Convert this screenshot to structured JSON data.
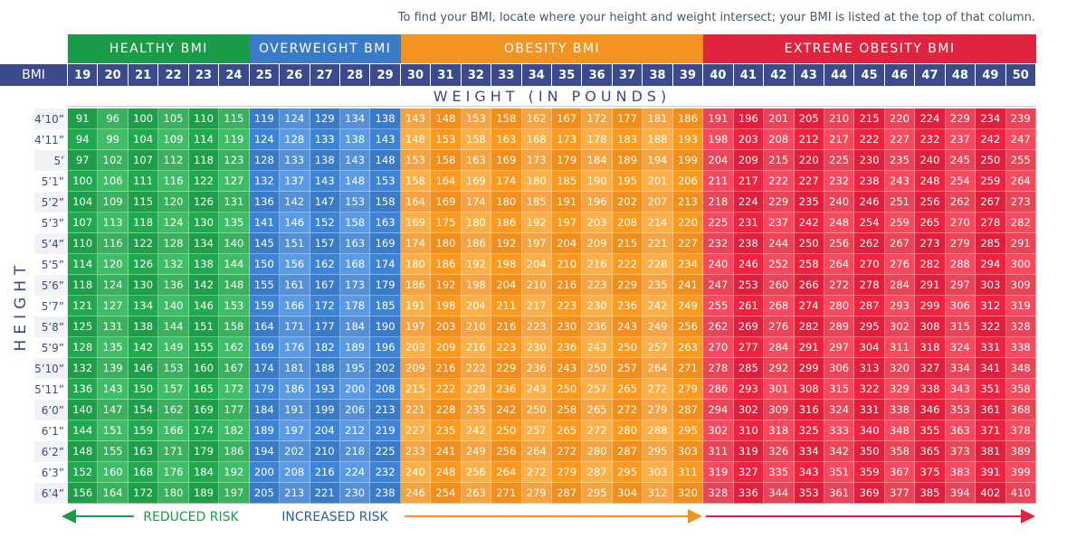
{
  "note": "To find your BMI, locate where your height and weight intersect; your BMI is listed at the top of that column.",
  "groups": [
    "HEALTHY BMI",
    "OVERWEIGHT BMI",
    "OBESITY BMI",
    "EXTREME OBESITY BMI"
  ],
  "bmi_label": "BMI",
  "bmi": [
    19,
    20,
    21,
    22,
    23,
    24,
    25,
    26,
    27,
    28,
    29,
    30,
    31,
    32,
    33,
    34,
    35,
    36,
    37,
    38,
    39,
    40,
    41,
    42,
    43,
    44,
    45,
    46,
    47,
    48,
    49,
    50
  ],
  "weight_header": "WEIGHT (IN POUNDS)",
  "height_label": "HEIGHT",
  "rows": [
    {
      "height": "4’10”",
      "weights": [
        91,
        96,
        100,
        105,
        110,
        115,
        119,
        124,
        129,
        134,
        138,
        143,
        148,
        153,
        158,
        162,
        167,
        172,
        177,
        181,
        186,
        191,
        196,
        201,
        205,
        210,
        215,
        220,
        224,
        229,
        234,
        239
      ]
    },
    {
      "height": "4’11”",
      "weights": [
        94,
        99,
        104,
        109,
        114,
        119,
        124,
        128,
        133,
        138,
        143,
        148,
        153,
        158,
        163,
        168,
        173,
        178,
        183,
        188,
        193,
        198,
        203,
        208,
        212,
        217,
        222,
        227,
        232,
        237,
        242,
        247
      ]
    },
    {
      "height": "5’",
      "weights": [
        97,
        102,
        107,
        112,
        118,
        123,
        128,
        133,
        138,
        143,
        148,
        153,
        158,
        163,
        169,
        173,
        179,
        184,
        189,
        194,
        199,
        204,
        209,
        215,
        220,
        225,
        230,
        235,
        240,
        245,
        250,
        255
      ]
    },
    {
      "height": "5’1”",
      "weights": [
        100,
        106,
        111,
        116,
        122,
        127,
        132,
        137,
        143,
        148,
        153,
        158,
        164,
        169,
        174,
        180,
        185,
        190,
        195,
        201,
        206,
        211,
        217,
        222,
        227,
        232,
        238,
        243,
        248,
        254,
        259,
        264
      ]
    },
    {
      "height": "5’2”",
      "weights": [
        104,
        109,
        115,
        120,
        126,
        131,
        136,
        142,
        147,
        153,
        158,
        164,
        169,
        174,
        180,
        185,
        191,
        196,
        202,
        207,
        213,
        218,
        224,
        229,
        235,
        240,
        246,
        251,
        256,
        262,
        267,
        273
      ]
    },
    {
      "height": "5’3”",
      "weights": [
        107,
        113,
        118,
        124,
        130,
        135,
        141,
        146,
        152,
        158,
        163,
        169,
        175,
        180,
        186,
        192,
        197,
        203,
        208,
        214,
        220,
        225,
        231,
        237,
        242,
        248,
        254,
        259,
        265,
        270,
        278,
        282
      ]
    },
    {
      "height": "5’4”",
      "weights": [
        110,
        116,
        122,
        128,
        134,
        140,
        145,
        151,
        157,
        163,
        169,
        174,
        180,
        186,
        192,
        197,
        204,
        209,
        215,
        221,
        227,
        232,
        238,
        244,
        250,
        256,
        262,
        267,
        273,
        279,
        285,
        291
      ]
    },
    {
      "height": "5’5”",
      "weights": [
        114,
        120,
        126,
        132,
        138,
        144,
        150,
        156,
        162,
        168,
        174,
        180,
        186,
        192,
        198,
        204,
        210,
        216,
        222,
        228,
        234,
        240,
        246,
        252,
        258,
        264,
        270,
        276,
        282,
        288,
        294,
        300
      ]
    },
    {
      "height": "5’6”",
      "weights": [
        118,
        124,
        130,
        136,
        142,
        148,
        155,
        161,
        167,
        173,
        179,
        186,
        192,
        198,
        204,
        210,
        216,
        223,
        229,
        235,
        241,
        247,
        253,
        260,
        266,
        272,
        278,
        284,
        291,
        297,
        303,
        309
      ]
    },
    {
      "height": "5’7”",
      "weights": [
        121,
        127,
        134,
        140,
        146,
        153,
        159,
        166,
        172,
        178,
        185,
        191,
        198,
        204,
        211,
        217,
        223,
        230,
        236,
        242,
        249,
        255,
        261,
        268,
        274,
        280,
        287,
        293,
        299,
        306,
        312,
        319
      ]
    },
    {
      "height": "5’8”",
      "weights": [
        125,
        131,
        138,
        144,
        151,
        158,
        164,
        171,
        177,
        184,
        190,
        197,
        203,
        210,
        216,
        223,
        230,
        236,
        243,
        249,
        256,
        262,
        269,
        276,
        282,
        289,
        295,
        302,
        308,
        315,
        322,
        328
      ]
    },
    {
      "height": "5’9”",
      "weights": [
        128,
        135,
        142,
        149,
        155,
        162,
        169,
        176,
        182,
        189,
        196,
        203,
        209,
        216,
        223,
        230,
        236,
        243,
        250,
        257,
        263,
        270,
        277,
        284,
        291,
        297,
        304,
        311,
        318,
        324,
        331,
        338
      ]
    },
    {
      "height": "5’10”",
      "weights": [
        132,
        139,
        146,
        153,
        160,
        167,
        174,
        181,
        188,
        195,
        202,
        209,
        216,
        222,
        229,
        236,
        243,
        250,
        257,
        264,
        271,
        278,
        285,
        292,
        299,
        306,
        313,
        320,
        327,
        334,
        341,
        348
      ]
    },
    {
      "height": "5’11”",
      "weights": [
        136,
        143,
        150,
        157,
        165,
        172,
        179,
        186,
        193,
        200,
        208,
        215,
        222,
        229,
        236,
        243,
        250,
        257,
        265,
        272,
        279,
        286,
        293,
        301,
        308,
        315,
        322,
        329,
        338,
        343,
        351,
        358
      ]
    },
    {
      "height": "6’0”",
      "weights": [
        140,
        147,
        154,
        162,
        169,
        177,
        184,
        191,
        199,
        206,
        213,
        221,
        228,
        235,
        242,
        250,
        258,
        265,
        272,
        279,
        287,
        294,
        302,
        309,
        316,
        324,
        331,
        338,
        346,
        353,
        361,
        368
      ]
    },
    {
      "height": "6’1”",
      "weights": [
        144,
        151,
        159,
        166,
        174,
        182,
        189,
        197,
        204,
        212,
        219,
        227,
        235,
        242,
        250,
        257,
        265,
        272,
        280,
        288,
        295,
        302,
        310,
        318,
        325,
        333,
        340,
        348,
        355,
        363,
        371,
        378
      ]
    },
    {
      "height": "6’2”",
      "weights": [
        148,
        155,
        163,
        171,
        179,
        186,
        194,
        202,
        210,
        218,
        225,
        233,
        241,
        249,
        256,
        264,
        272,
        280,
        287,
        295,
        303,
        311,
        319,
        326,
        334,
        342,
        350,
        358,
        365,
        373,
        381,
        389
      ]
    },
    {
      "height": "6’3”",
      "weights": [
        152,
        160,
        168,
        176,
        184,
        192,
        200,
        208,
        216,
        224,
        232,
        240,
        248,
        256,
        264,
        272,
        279,
        287,
        295,
        303,
        311,
        319,
        327,
        335,
        343,
        351,
        359,
        367,
        375,
        383,
        391,
        399
      ]
    },
    {
      "height": "6’4”",
      "weights": [
        156,
        164,
        172,
        180,
        189,
        197,
        205,
        213,
        221,
        230,
        238,
        246,
        254,
        263,
        271,
        279,
        287,
        295,
        304,
        312,
        320,
        328,
        336,
        344,
        353,
        361,
        369,
        377,
        385,
        394,
        402,
        410
      ]
    }
  ],
  "footer": {
    "reduced": "REDUCED RISK",
    "increased": "INCREASED RISK"
  }
}
